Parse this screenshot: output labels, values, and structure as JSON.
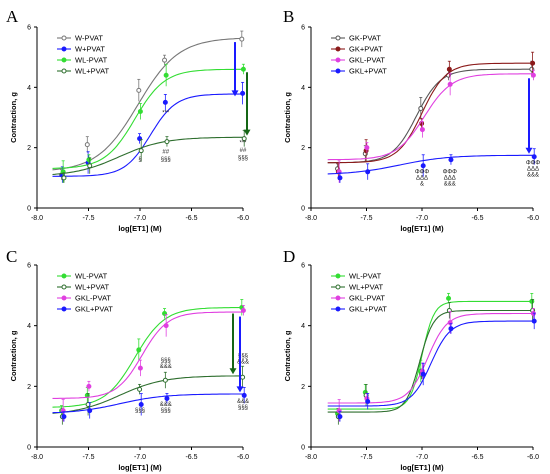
{
  "chart_data": [
    {
      "panel": "A",
      "type": "line",
      "xlabel": "log[ET1] (M)",
      "ylabel": "Contraction, g",
      "xlim": [
        -8.0,
        -6.0
      ],
      "ylim": [
        0,
        6
      ],
      "xticks": [
        "-8.0",
        "-7.5",
        "-7.0",
        "-6.5",
        "-6.0"
      ],
      "yticks": [
        "0",
        "2",
        "4",
        "6"
      ],
      "x": [
        -7.75,
        -7.5,
        -7.0,
        -6.75,
        -6.0
      ],
      "legend_position": "top-left",
      "series": [
        {
          "name": "W-PVAT",
          "color": "#777777",
          "marker": "circle-open",
          "bottom": 1.2,
          "top": 5.65,
          "ec50": -7.02,
          "slope": 2.2,
          "values": [
            1.1,
            2.1,
            3.9,
            4.9,
            5.6
          ]
        },
        {
          "name": "W+PVAT",
          "color": "#1a1aff",
          "marker": "circle-filled",
          "bottom": 1.05,
          "top": 3.78,
          "ec50": -6.9,
          "slope": 3.5,
          "values": [
            1.1,
            1.5,
            2.3,
            3.5,
            3.8
          ]
        },
        {
          "name": "WL-PVAT",
          "color": "#33dd33",
          "marker": "circle-filled",
          "bottom": 1.3,
          "top": 4.6,
          "ec50": -7.05,
          "slope": 3.0,
          "values": [
            1.2,
            1.6,
            3.2,
            4.4,
            4.6
          ]
        },
        {
          "name": "WL+PVAT",
          "color": "#2e6e2e",
          "marker": "circle-open",
          "bottom": 1.05,
          "top": 2.35,
          "ec50": -7.2,
          "slope": 2.0,
          "values": [
            1.0,
            1.4,
            1.9,
            2.2,
            2.3
          ]
        }
      ],
      "annotations": [
        {
          "text": "§",
          "x": -7.0,
          "y": 1.55
        },
        {
          "text": "***",
          "x": -6.75,
          "y": 3.1
        },
        {
          "text": "##",
          "x": -6.75,
          "y": 1.8
        },
        {
          "text": "§§§",
          "x": -6.75,
          "y": 1.55
        },
        {
          "text": "***",
          "x": -6.0,
          "y": 2.1
        },
        {
          "text": "##",
          "x": -6.0,
          "y": 1.85
        },
        {
          "text": "§§§",
          "x": -6.0,
          "y": 1.6
        }
      ],
      "arrows": [
        {
          "color": "#1a1aff",
          "from": 5.5,
          "to": 3.7
        },
        {
          "color": "#156615",
          "from": 4.5,
          "to": 2.4
        }
      ]
    },
    {
      "panel": "B",
      "type": "line",
      "xlabel": "log[ET1] (M)",
      "ylabel": "Contraction, g",
      "xlim": [
        -8.0,
        -6.0
      ],
      "ylim": [
        0,
        6
      ],
      "xticks": [
        "-8.0",
        "-7.5",
        "-7.0",
        "-6.5",
        "-6.0"
      ],
      "yticks": [
        "0",
        "2",
        "4",
        "6"
      ],
      "x": [
        -7.75,
        -7.5,
        -7.0,
        -6.75,
        -6.0
      ],
      "legend_position": "top-left",
      "series": [
        {
          "name": "GK-PVAT",
          "color": "#555555",
          "marker": "circle-open",
          "bottom": 1.5,
          "top": 4.6,
          "ec50": -7.05,
          "slope": 4.0,
          "values": [
            1.3,
            1.8,
            3.3,
            4.4,
            4.6
          ]
        },
        {
          "name": "GK+PVAT",
          "color": "#8b1a1a",
          "marker": "circle-filled",
          "bottom": 1.5,
          "top": 4.8,
          "ec50": -7.0,
          "slope": 4.0,
          "values": [
            1.2,
            1.9,
            2.8,
            4.6,
            4.8
          ]
        },
        {
          "name": "GKL-PVAT",
          "color": "#e040e0",
          "marker": "circle-filled",
          "bottom": 1.6,
          "top": 4.45,
          "ec50": -6.98,
          "slope": 3.5,
          "values": [
            1.2,
            2.0,
            2.6,
            4.1,
            4.4
          ]
        },
        {
          "name": "GKL+PVAT",
          "color": "#1a1aff",
          "marker": "circle-filled",
          "bottom": 1.1,
          "top": 1.75,
          "ec50": -7.2,
          "slope": 2.0,
          "values": [
            1.0,
            1.2,
            1.4,
            1.6,
            1.7
          ]
        }
      ],
      "annotations": [
        {
          "text": "ΦΦΦ",
          "x": -7.0,
          "y": 1.15
        },
        {
          "text": "ΔΔΔ",
          "x": -7.0,
          "y": 0.95
        },
        {
          "text": "&",
          "x": -7.0,
          "y": 0.75
        },
        {
          "text": "ΦΦΦ",
          "x": -6.75,
          "y": 1.15
        },
        {
          "text": "ΔΔΔ",
          "x": -6.75,
          "y": 0.95
        },
        {
          "text": "&&&",
          "x": -6.75,
          "y": 0.75
        },
        {
          "text": "ΦΦΦ",
          "x": -6.0,
          "y": 1.45
        },
        {
          "text": "ΔΔΔ",
          "x": -6.0,
          "y": 1.25
        },
        {
          "text": "&&&",
          "x": -6.0,
          "y": 1.05
        }
      ],
      "arrows": [
        {
          "color": "#1a1aff",
          "from": 4.3,
          "to": 1.8
        }
      ]
    },
    {
      "panel": "C",
      "type": "line",
      "xlabel": "log[ET1] (M)",
      "ylabel": "Contraction, g",
      "xlim": [
        -8.0,
        -6.0
      ],
      "ylim": [
        0,
        6
      ],
      "xticks": [
        "-8.0",
        "-7.5",
        "-7.0",
        "-6.5",
        "-6.0"
      ],
      "yticks": [
        "0",
        "2",
        "4",
        "6"
      ],
      "x": [
        -7.75,
        -7.5,
        -7.0,
        -6.75,
        -6.0
      ],
      "legend_position": "top-left",
      "series": [
        {
          "name": "WL-PVAT",
          "color": "#33dd33",
          "marker": "circle-filled",
          "bottom": 1.3,
          "top": 4.6,
          "ec50": -7.05,
          "slope": 3.0,
          "values": [
            1.2,
            1.7,
            3.2,
            4.4,
            4.6
          ]
        },
        {
          "name": "WL+PVAT",
          "color": "#2e6e2e",
          "marker": "circle-open",
          "bottom": 1.05,
          "top": 2.35,
          "ec50": -7.2,
          "slope": 2.0,
          "values": [
            1.0,
            1.4,
            1.9,
            2.2,
            2.3
          ]
        },
        {
          "name": "GKL-PVAT",
          "color": "#e040e0",
          "marker": "circle-filled",
          "bottom": 1.6,
          "top": 4.45,
          "ec50": -6.98,
          "slope": 3.5,
          "values": [
            1.2,
            2.0,
            2.6,
            4.0,
            4.5
          ]
        },
        {
          "name": "GKL+PVAT",
          "color": "#1a1aff",
          "marker": "circle-filled",
          "bottom": 1.1,
          "top": 1.75,
          "ec50": -7.2,
          "slope": 2.0,
          "values": [
            1.0,
            1.2,
            1.4,
            1.6,
            1.7
          ]
        }
      ],
      "annotations": [
        {
          "text": "§§§",
          "x": -6.75,
          "y": 2.8
        },
        {
          "text": "&&&",
          "x": -6.75,
          "y": 2.6
        },
        {
          "text": "&&&",
          "x": -6.75,
          "y": 1.35
        },
        {
          "text": "§§§",
          "x": -6.75,
          "y": 1.15
        },
        {
          "text": "§§§",
          "x": -7.0,
          "y": 1.15
        },
        {
          "text": "§§§",
          "x": -6.0,
          "y": 2.95
        },
        {
          "text": "&&&",
          "x": -6.0,
          "y": 2.75
        },
        {
          "text": "&&&",
          "x": -6.0,
          "y": 1.45
        },
        {
          "text": "§§§",
          "x": -6.0,
          "y": 1.25
        }
      ],
      "arrows": [
        {
          "color": "#156615",
          "from": 4.4,
          "to": 2.4
        },
        {
          "color": "#1a1aff",
          "from": 4.3,
          "to": 1.8
        }
      ]
    },
    {
      "panel": "D",
      "type": "line",
      "xlabel": "log[ET1] (M)",
      "ylabel": "Contraction, g",
      "xlim": [
        -8.0,
        -6.0
      ],
      "ylim": [
        0,
        6
      ],
      "xticks": [
        "-8.0",
        "-7.5",
        "-7.0",
        "-6.5",
        "-6.0"
      ],
      "yticks": [
        "0",
        "2",
        "4",
        "6"
      ],
      "x": [
        -7.75,
        -7.5,
        -7.0,
        -6.75,
        -6.0
      ],
      "legend_position": "top-left",
      "series": [
        {
          "name": "WL-PVAT",
          "color": "#33dd33",
          "marker": "circle-filled",
          "bottom": 1.25,
          "top": 4.8,
          "ec50": -7.0,
          "slope": 8.0,
          "values": [
            1.1,
            1.8,
            2.5,
            4.9,
            4.8
          ]
        },
        {
          "name": "WL+PVAT",
          "color": "#2e6e2e",
          "marker": "circle-open",
          "bottom": 1.15,
          "top": 4.5,
          "ec50": -7.02,
          "slope": 7.0,
          "values": [
            1.0,
            1.7,
            2.4,
            4.5,
            4.5
          ]
        },
        {
          "name": "GKL-PVAT",
          "color": "#e040e0",
          "marker": "circle-filled",
          "bottom": 1.45,
          "top": 4.4,
          "ec50": -6.95,
          "slope": 5.0,
          "values": [
            1.2,
            1.6,
            2.5,
            4.1,
            4.4
          ]
        },
        {
          "name": "GKL+PVAT",
          "color": "#1a1aff",
          "marker": "circle-filled",
          "bottom": 1.35,
          "top": 4.15,
          "ec50": -6.92,
          "slope": 5.0,
          "values": [
            1.0,
            1.5,
            2.4,
            3.9,
            4.15
          ]
        }
      ],
      "annotations": [],
      "arrows": []
    }
  ]
}
